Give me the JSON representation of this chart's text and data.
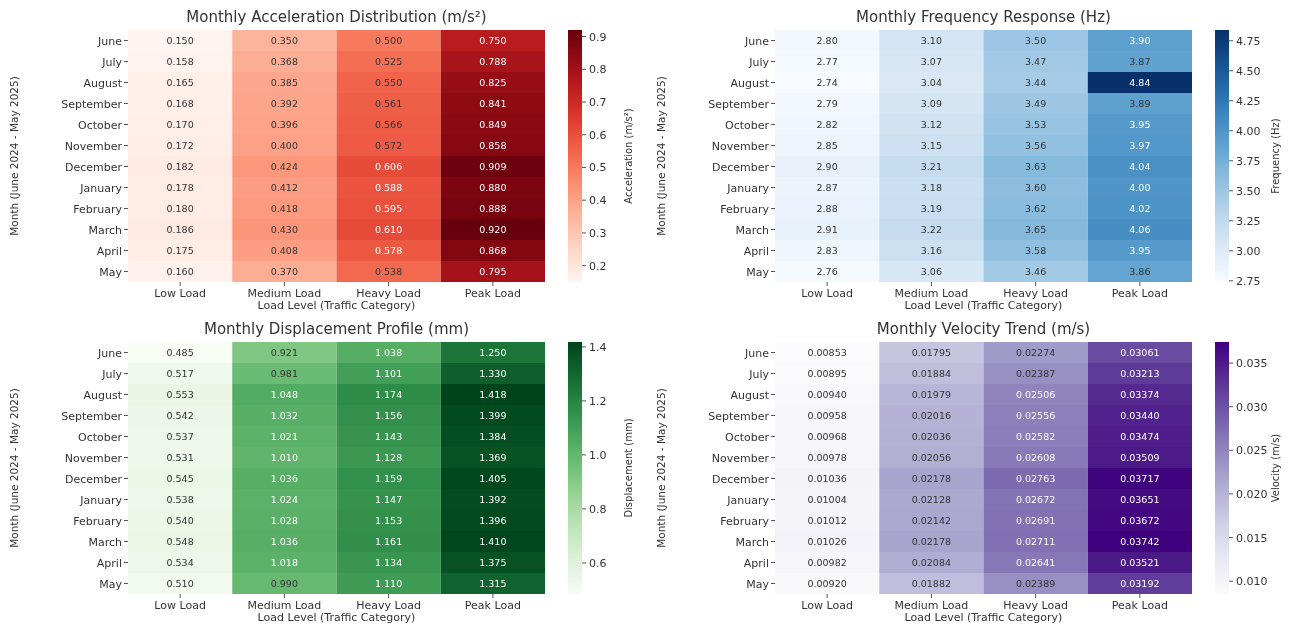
{
  "chart_data": [
    {
      "type": "heatmap",
      "title": "Monthly Acceleration Distribution (m/s²)",
      "xlabel": "Load Level (Traffic Category)",
      "ylabel": "Month (June 2024 - May 2025)",
      "clabel": "Acceleration (m/s²)",
      "categories": [
        "Low Load",
        "Medium Load",
        "Heavy Load",
        "Peak Load"
      ],
      "y_categories": [
        "June",
        "July",
        "August",
        "September",
        "October",
        "November",
        "December",
        "January",
        "February",
        "March",
        "April",
        "May"
      ],
      "colors": [
        "#fff5f0",
        "#fcbba1",
        "#fb6a4a",
        "#cb181d",
        "#67000d"
      ],
      "clim": [
        0.15,
        0.92
      ],
      "cticks": [
        0.2,
        0.3,
        0.4,
        0.5,
        0.6,
        0.7,
        0.8,
        0.9
      ],
      "cells": [
        [
          0.15,
          0.35,
          0.5,
          0.75
        ],
        [
          0.158,
          0.368,
          0.525,
          0.788
        ],
        [
          0.165,
          0.385,
          0.55,
          0.825
        ],
        [
          0.168,
          0.392,
          0.561,
          0.841
        ],
        [
          0.17,
          0.396,
          0.566,
          0.849
        ],
        [
          0.172,
          0.4,
          0.572,
          0.858
        ],
        [
          0.182,
          0.424,
          0.606,
          0.909
        ],
        [
          0.178,
          0.412,
          0.588,
          0.88
        ],
        [
          0.18,
          0.418,
          0.595,
          0.888
        ],
        [
          0.186,
          0.43,
          0.61,
          0.92
        ],
        [
          0.175,
          0.408,
          0.578,
          0.868
        ],
        [
          0.16,
          0.37,
          0.538,
          0.795
        ]
      ],
      "cell_labels": [
        [
          "0.150",
          "0.350",
          "0.500",
          "0.750"
        ],
        [
          "0.158",
          "0.368",
          "0.525",
          "0.788"
        ],
        [
          "0.165",
          "0.385",
          "0.550",
          "0.825"
        ],
        [
          "0.168",
          "0.392",
          "0.561",
          "0.841"
        ],
        [
          "0.170",
          "0.396",
          "0.566",
          "0.849"
        ],
        [
          "0.172",
          "0.400",
          "0.572",
          "0.858"
        ],
        [
          "0.182",
          "0.424",
          "0.606",
          "0.909"
        ],
        [
          "0.178",
          "0.412",
          "0.588",
          "0.880"
        ],
        [
          "0.180",
          "0.418",
          "0.595",
          "0.888"
        ],
        [
          "0.186",
          "0.430",
          "0.610",
          "0.920"
        ],
        [
          "0.175",
          "0.408",
          "0.578",
          "0.868"
        ],
        [
          "0.160",
          "0.370",
          "0.538",
          "0.795"
        ]
      ]
    },
    {
      "type": "heatmap",
      "title": "Monthly Frequency Response (Hz)",
      "xlabel": "Load Level (Traffic Category)",
      "ylabel": "Month (June 2024 - May 2025)",
      "clabel": "Frequency (Hz)",
      "categories": [
        "Low Load",
        "Medium Load",
        "Heavy Load",
        "Peak Load"
      ],
      "y_categories": [
        "June",
        "July",
        "August",
        "September",
        "October",
        "November",
        "December",
        "January",
        "February",
        "March",
        "April",
        "May"
      ],
      "colors": [
        "#f7fbff",
        "#c6dbef",
        "#6baed6",
        "#2171b5",
        "#08306b"
      ],
      "clim": [
        2.74,
        4.84
      ],
      "cticks": [
        {
          "value": 2.75,
          "label": "2.75"
        },
        {
          "value": 3.0,
          "label": "3.00"
        },
        {
          "value": 3.25,
          "label": "3.25"
        },
        {
          "value": 3.5,
          "label": "3.50"
        },
        {
          "value": 3.75,
          "label": "3.75"
        },
        {
          "value": 4.0,
          "label": "4.00"
        },
        {
          "value": 4.25,
          "label": "4.25"
        },
        {
          "value": 4.5,
          "label": "4.50"
        },
        {
          "value": 4.75,
          "label": "4.75"
        }
      ],
      "cells": [
        [
          2.8,
          3.1,
          3.5,
          3.9
        ],
        [
          2.77,
          3.07,
          3.47,
          3.87
        ],
        [
          2.74,
          3.04,
          3.44,
          4.84
        ],
        [
          2.79,
          3.09,
          3.49,
          3.89
        ],
        [
          2.82,
          3.12,
          3.53,
          3.95
        ],
        [
          2.85,
          3.15,
          3.56,
          3.97
        ],
        [
          2.9,
          3.21,
          3.63,
          4.04
        ],
        [
          2.87,
          3.18,
          3.6,
          4.0
        ],
        [
          2.88,
          3.19,
          3.62,
          4.02
        ],
        [
          2.91,
          3.22,
          3.65,
          4.06
        ],
        [
          2.83,
          3.16,
          3.58,
          3.95
        ],
        [
          2.76,
          3.06,
          3.46,
          3.86
        ]
      ],
      "cell_labels": [
        [
          "2.80",
          "3.10",
          "3.50",
          "3.90"
        ],
        [
          "2.77",
          "3.07",
          "3.47",
          "3.87"
        ],
        [
          "2.74",
          "3.04",
          "3.44",
          "4.84"
        ],
        [
          "2.79",
          "3.09",
          "3.49",
          "3.89"
        ],
        [
          "2.82",
          "3.12",
          "3.53",
          "3.95"
        ],
        [
          "2.85",
          "3.15",
          "3.56",
          "3.97"
        ],
        [
          "2.90",
          "3.21",
          "3.63",
          "4.04"
        ],
        [
          "2.87",
          "3.18",
          "3.60",
          "4.00"
        ],
        [
          "2.88",
          "3.19",
          "3.62",
          "4.02"
        ],
        [
          "2.91",
          "3.22",
          "3.65",
          "4.06"
        ],
        [
          "2.83",
          "3.16",
          "3.58",
          "3.95"
        ],
        [
          "2.76",
          "3.06",
          "3.46",
          "3.86"
        ]
      ]
    },
    {
      "type": "heatmap",
      "title": "Monthly Displacement Profile (mm)",
      "xlabel": "Load Level (Traffic Category)",
      "ylabel": "Month (June 2024 - May 2025)",
      "clabel": "Displacement (mm)",
      "categories": [
        "Low Load",
        "Medium Load",
        "Heavy Load",
        "Peak Load"
      ],
      "y_categories": [
        "June",
        "July",
        "August",
        "September",
        "October",
        "November",
        "December",
        "January",
        "February",
        "March",
        "April",
        "May"
      ],
      "colors": [
        "#f7fcf5",
        "#c7e9c0",
        "#74c476",
        "#238b45",
        "#00441b"
      ],
      "clim": [
        0.485,
        1.418
      ],
      "cticks": [
        0.6,
        0.8,
        {
          "value": 1.0,
          "label": "1.0"
        },
        1.2,
        1.4
      ],
      "cells": [
        [
          0.485,
          0.921,
          1.038,
          1.25
        ],
        [
          0.517,
          0.981,
          1.101,
          1.33
        ],
        [
          0.553,
          1.048,
          1.174,
          1.418
        ],
        [
          0.542,
          1.032,
          1.156,
          1.399
        ],
        [
          0.537,
          1.021,
          1.143,
          1.384
        ],
        [
          0.531,
          1.01,
          1.128,
          1.369
        ],
        [
          0.545,
          1.036,
          1.159,
          1.405
        ],
        [
          0.538,
          1.024,
          1.147,
          1.392
        ],
        [
          0.54,
          1.028,
          1.153,
          1.396
        ],
        [
          0.548,
          1.036,
          1.161,
          1.41
        ],
        [
          0.534,
          1.018,
          1.134,
          1.375
        ],
        [
          0.51,
          0.99,
          1.11,
          1.315
        ]
      ],
      "cell_labels": [
        [
          "0.485",
          "0.921",
          "1.038",
          "1.250"
        ],
        [
          "0.517",
          "0.981",
          "1.101",
          "1.330"
        ],
        [
          "0.553",
          "1.048",
          "1.174",
          "1.418"
        ],
        [
          "0.542",
          "1.032",
          "1.156",
          "1.399"
        ],
        [
          "0.537",
          "1.021",
          "1.143",
          "1.384"
        ],
        [
          "0.531",
          "1.010",
          "1.128",
          "1.369"
        ],
        [
          "0.545",
          "1.036",
          "1.159",
          "1.405"
        ],
        [
          "0.538",
          "1.024",
          "1.147",
          "1.392"
        ],
        [
          "0.540",
          "1.028",
          "1.153",
          "1.396"
        ],
        [
          "0.548",
          "1.036",
          "1.161",
          "1.410"
        ],
        [
          "0.534",
          "1.018",
          "1.134",
          "1.375"
        ],
        [
          "0.510",
          "0.990",
          "1.110",
          "1.315"
        ]
      ]
    },
    {
      "type": "heatmap",
      "title": "Monthly Velocity Trend (m/s)",
      "xlabel": "Load Level (Traffic Category)",
      "ylabel": "Month (June 2024 - May 2025)",
      "clabel": "Velocity (m/s)",
      "categories": [
        "Low Load",
        "Medium Load",
        "Heavy Load",
        "Peak Load"
      ],
      "y_categories": [
        "June",
        "July",
        "August",
        "September",
        "October",
        "November",
        "December",
        "January",
        "February",
        "March",
        "April",
        "May"
      ],
      "colors": [
        "#fcfbfd",
        "#dadaeb",
        "#9e9ac8",
        "#6a51a3",
        "#3f007d"
      ],
      "clim": [
        0.00853,
        0.03742
      ],
      "cticks": [
        {
          "value": 0.01,
          "label": "0.010"
        },
        0.015,
        {
          "value": 0.02,
          "label": "0.020"
        },
        0.025,
        {
          "value": 0.03,
          "label": "0.030"
        },
        0.035
      ],
      "cells": [
        [
          0.00853,
          0.01795,
          0.02274,
          0.03061
        ],
        [
          0.00895,
          0.01884,
          0.02387,
          0.03213
        ],
        [
          0.0094,
          0.01979,
          0.02506,
          0.03374
        ],
        [
          0.00958,
          0.02016,
          0.02556,
          0.0344
        ],
        [
          0.00968,
          0.02036,
          0.02582,
          0.03474
        ],
        [
          0.00978,
          0.02056,
          0.02608,
          0.03509
        ],
        [
          0.01036,
          0.02178,
          0.02763,
          0.03717
        ],
        [
          0.01004,
          0.02128,
          0.02672,
          0.03651
        ],
        [
          0.01012,
          0.02142,
          0.02691,
          0.03672
        ],
        [
          0.01026,
          0.02178,
          0.02711,
          0.03742
        ],
        [
          0.00982,
          0.02084,
          0.02641,
          0.03521
        ],
        [
          0.0092,
          0.01882,
          0.02389,
          0.03192
        ]
      ],
      "cell_labels": [
        [
          "0.00853",
          "0.01795",
          "0.02274",
          "0.03061"
        ],
        [
          "0.00895",
          "0.01884",
          "0.02387",
          "0.03213"
        ],
        [
          "0.00940",
          "0.01979",
          "0.02506",
          "0.03374"
        ],
        [
          "0.00958",
          "0.02016",
          "0.02556",
          "0.03440"
        ],
        [
          "0.00968",
          "0.02036",
          "0.02582",
          "0.03474"
        ],
        [
          "0.00978",
          "0.02056",
          "0.02608",
          "0.03509"
        ],
        [
          "0.01036",
          "0.02178",
          "0.02763",
          "0.03717"
        ],
        [
          "0.01004",
          "0.02128",
          "0.02672",
          "0.03651"
        ],
        [
          "0.01012",
          "0.02142",
          "0.02691",
          "0.03672"
        ],
        [
          "0.01026",
          "0.02178",
          "0.02711",
          "0.03742"
        ],
        [
          "0.00982",
          "0.02084",
          "0.02641",
          "0.03521"
        ],
        [
          "0.00920",
          "0.01882",
          "0.02389",
          "0.03192"
        ]
      ]
    }
  ]
}
